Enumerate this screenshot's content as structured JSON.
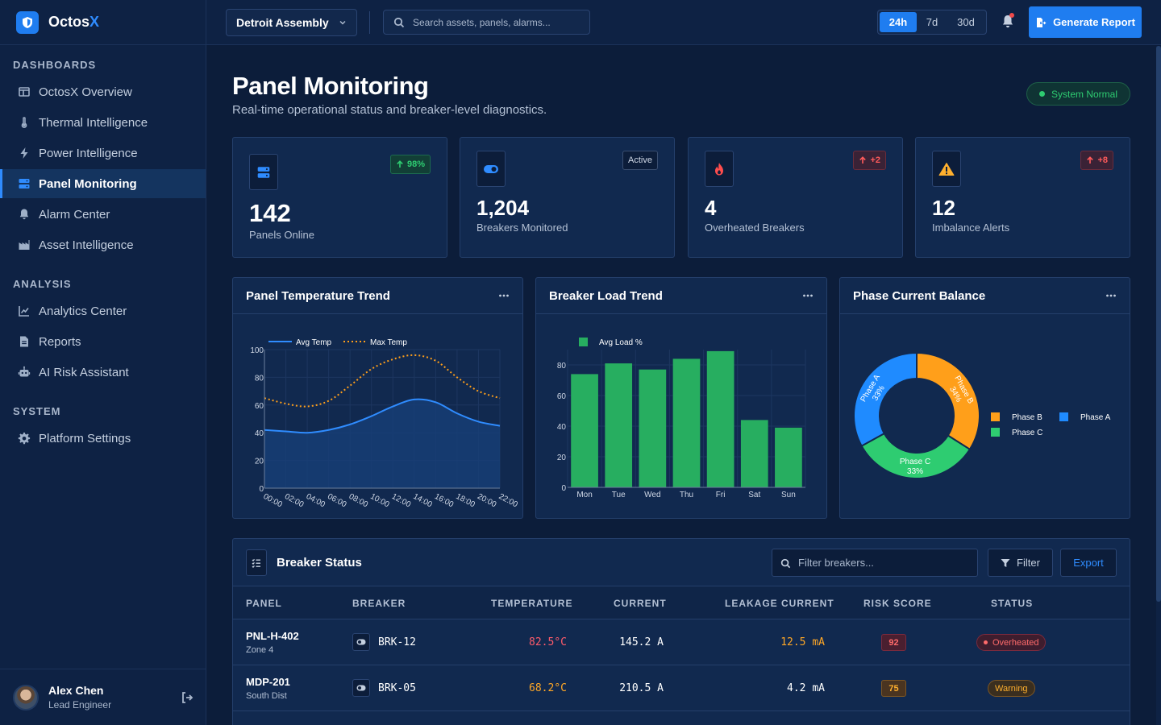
{
  "brand": {
    "name": "Octos",
    "accent": "X"
  },
  "sidebar": {
    "sections": [
      {
        "label": "DASHBOARDS",
        "items": [
          {
            "label": "OctosX Overview",
            "icon": "layout-icon"
          },
          {
            "label": "Thermal Intelligence",
            "icon": "thermometer-icon"
          },
          {
            "label": "Power Intelligence",
            "icon": "bolt-icon"
          },
          {
            "label": "Panel Monitoring",
            "icon": "server-icon",
            "active": true
          },
          {
            "label": "Alarm Center",
            "icon": "bell-icon"
          },
          {
            "label": "Asset Intelligence",
            "icon": "industry-icon"
          }
        ]
      },
      {
        "label": "ANALYSIS",
        "items": [
          {
            "label": "Analytics Center",
            "icon": "line-chart-icon"
          },
          {
            "label": "Reports",
            "icon": "file-icon"
          },
          {
            "label": "AI Risk Assistant",
            "icon": "robot-icon"
          }
        ]
      },
      {
        "label": "SYSTEM",
        "items": [
          {
            "label": "Platform Settings",
            "icon": "gear-icon"
          }
        ]
      }
    ]
  },
  "user": {
    "name": "Alex Chen",
    "role": "Lead Engineer"
  },
  "topbar": {
    "site": "Detroit Assembly",
    "search_placeholder": "Search assets, panels, alarms...",
    "ranges": [
      "24h",
      "7d",
      "30d"
    ],
    "active_range": "24h",
    "report_button": "Generate Report"
  },
  "page": {
    "title": "Panel Monitoring",
    "subtitle": "Real-time operational status and breaker-level diagnostics.",
    "system_status": "System Normal"
  },
  "kpis": [
    {
      "value": "142",
      "label": "Panels Online",
      "badge": "98%",
      "badge_type": "up-green",
      "icon": "server-icon",
      "color": "#2f8cff"
    },
    {
      "value": "1,204",
      "label": "Breakers Monitored",
      "badge": "Active",
      "badge_type": "dark",
      "icon": "toggle-icon",
      "color": "#2f8cff"
    },
    {
      "value": "4",
      "label": "Overheated Breakers",
      "badge": "+2",
      "badge_type": "up-red",
      "icon": "fire-icon",
      "color": "#ff4d4d"
    },
    {
      "value": "12",
      "label": "Imbalance Alerts",
      "badge": "+8",
      "badge_type": "up-red",
      "icon": "warning-icon",
      "color": "#ffb02e"
    }
  ],
  "chart_data": [
    {
      "type": "area",
      "title": "Panel Temperature Trend",
      "x": [
        "00:00",
        "02:00",
        "04:00",
        "06:00",
        "08:00",
        "10:00",
        "12:00",
        "14:00",
        "16:00",
        "18:00",
        "20:00",
        "22:00"
      ],
      "ylim": [
        0,
        100
      ],
      "yticks": [
        0,
        20,
        40,
        60,
        80,
        100
      ],
      "legend_position": "top",
      "series": [
        {
          "name": "Avg Temp",
          "values": [
            42,
            41,
            40,
            42,
            46,
            52,
            59,
            64,
            62,
            54,
            48,
            45
          ],
          "color": "#2f8cff",
          "style": "solid-fill"
        },
        {
          "name": "Max Temp",
          "values": [
            65,
            61,
            59,
            63,
            74,
            86,
            93,
            96,
            92,
            80,
            70,
            65
          ],
          "color": "#ff9f1a",
          "style": "dotted"
        }
      ]
    },
    {
      "type": "bar",
      "title": "Breaker Load Trend",
      "categories": [
        "Mon",
        "Tue",
        "Wed",
        "Thu",
        "Fri",
        "Sat",
        "Sun"
      ],
      "ylim": [
        0,
        90
      ],
      "yticks": [
        0,
        20,
        40,
        60,
        80
      ],
      "legend_position": "top",
      "series": [
        {
          "name": "Avg Load %",
          "values": [
            74,
            81,
            77,
            84,
            89,
            44,
            39
          ],
          "color": "#27ae60"
        }
      ]
    },
    {
      "type": "pie",
      "title": "Phase Current Balance",
      "legend_position": "right",
      "slices": [
        {
          "label": "Phase B",
          "value": 34,
          "text": "34%",
          "color": "#ff9f1a"
        },
        {
          "label": "Phase C",
          "value": 33,
          "text": "33%",
          "color": "#2ecc71"
        },
        {
          "label": "Phase A",
          "value": 33,
          "text": "33%",
          "color": "#1f8bff"
        }
      ]
    }
  ],
  "table": {
    "title": "Breaker Status",
    "filter_placeholder": "Filter breakers...",
    "filter_label": "Filter",
    "export_label": "Export",
    "columns": [
      "PANEL",
      "BREAKER",
      "TEMPERATURE",
      "CURRENT",
      "LEAKAGE CURRENT",
      "RISK SCORE",
      "STATUS"
    ],
    "rows": [
      {
        "panel": "PNL-H-402",
        "zone": "Zone 4",
        "breaker": "BRK-12",
        "temperature": "82.5°C",
        "current": "145.2 A",
        "leakage": "12.5 mA",
        "risk": "92",
        "status": "Overheated",
        "level": "critical"
      },
      {
        "panel": "MDP-201",
        "zone": "South Dist",
        "breaker": "BRK-05",
        "temperature": "68.2°C",
        "current": "210.5 A",
        "leakage": "4.2 mA",
        "risk": "75",
        "status": "Warning",
        "level": "warning"
      }
    ]
  }
}
